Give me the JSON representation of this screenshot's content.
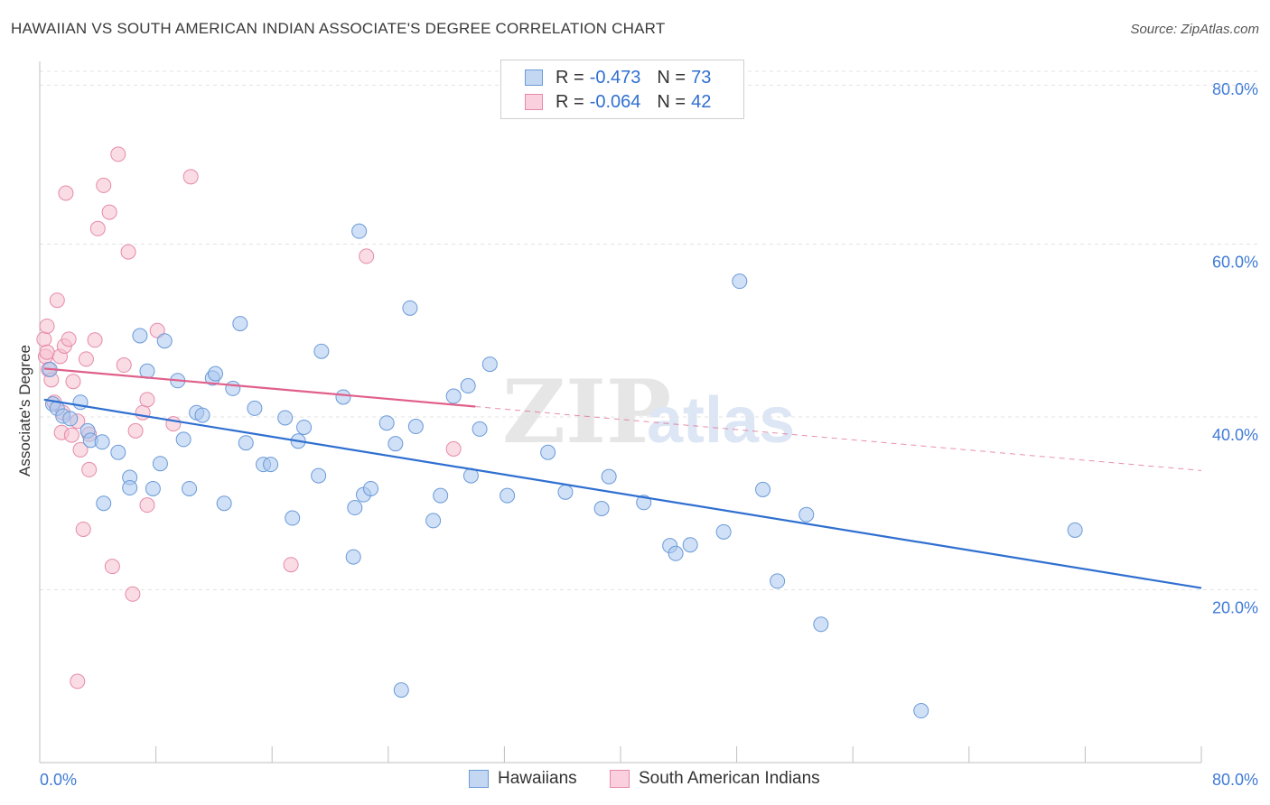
{
  "title": "HAWAIIAN VS SOUTH AMERICAN INDIAN ASSOCIATE'S DEGREE CORRELATION CHART",
  "source": "Source: ZipAtlas.com",
  "legend": {
    "series1": {
      "r_label": "R =",
      "r_value": "-0.473",
      "n_label": "N =",
      "n_value": "73"
    },
    "series2": {
      "r_label": "R =",
      "r_value": "-0.064",
      "n_label": "N =",
      "n_value": "42"
    }
  },
  "bottom_legend": {
    "series1": "Hawaiians",
    "series2": "South American Indians"
  },
  "watermark": {
    "zip": "ZIP",
    "atlas": "atlas"
  },
  "colors": {
    "blue_fill": "#a9c6ee",
    "blue_stroke": "#6a9ad8",
    "blue_line": "#2f6fd0",
    "pink_fill": "#f6bfd0",
    "pink_stroke": "#e68aa8",
    "pink_line": "#e0608a",
    "grid": "#e3e3e3",
    "tick_label": "#3f7bd6"
  },
  "chart_data": {
    "type": "scatter",
    "title": "HAWAIIAN VS SOUTH AMERICAN INDIAN ASSOCIATE'S DEGREE CORRELATION CHART",
    "xlabel": "",
    "ylabel": "Associate's Degree",
    "xlim": [
      0,
      80
    ],
    "ylim": [
      0,
      80
    ],
    "x_tick_labels": [
      "0.0%",
      "80.0%"
    ],
    "y_ticks": [
      20,
      40,
      60,
      80
    ],
    "y_tick_labels": [
      "20.0%",
      "40.0%",
      "60.0%",
      "80.0%"
    ],
    "grid": true,
    "legend_position": "top-center",
    "series": [
      {
        "name": "Hawaiians",
        "points": [
          [
            0.7,
            45.5
          ],
          [
            0.9,
            41.5
          ],
          [
            1.2,
            41.0
          ],
          [
            1.6,
            40.1
          ],
          [
            2.1,
            39.8
          ],
          [
            2.8,
            41.7
          ],
          [
            3.3,
            38.4
          ],
          [
            3.5,
            37.3
          ],
          [
            4.3,
            37.1
          ],
          [
            4.4,
            30.0
          ],
          [
            5.4,
            35.9
          ],
          [
            6.2,
            33.0
          ],
          [
            6.2,
            31.8
          ],
          [
            6.9,
            49.4
          ],
          [
            7.4,
            45.3
          ],
          [
            7.8,
            31.7
          ],
          [
            8.3,
            34.6
          ],
          [
            8.6,
            48.8
          ],
          [
            9.5,
            44.2
          ],
          [
            9.9,
            37.4
          ],
          [
            10.3,
            31.7
          ],
          [
            10.8,
            40.5
          ],
          [
            11.2,
            40.2
          ],
          [
            11.9,
            44.5
          ],
          [
            12.1,
            45.0
          ],
          [
            12.7,
            30.0
          ],
          [
            13.3,
            43.3
          ],
          [
            13.8,
            50.8
          ],
          [
            14.2,
            37.0
          ],
          [
            14.8,
            41.0
          ],
          [
            15.4,
            34.5
          ],
          [
            15.9,
            34.5
          ],
          [
            16.9,
            39.9
          ],
          [
            17.4,
            28.3
          ],
          [
            17.8,
            37.2
          ],
          [
            18.2,
            38.8
          ],
          [
            19.2,
            33.2
          ],
          [
            19.4,
            47.6
          ],
          [
            20.9,
            42.3
          ],
          [
            21.6,
            23.8
          ],
          [
            22.0,
            61.5
          ],
          [
            21.7,
            29.5
          ],
          [
            22.3,
            31.0
          ],
          [
            22.8,
            31.7
          ],
          [
            23.9,
            39.3
          ],
          [
            24.5,
            36.9
          ],
          [
            24.9,
            8.4
          ],
          [
            25.5,
            52.6
          ],
          [
            25.9,
            38.9
          ],
          [
            27.1,
            28.0
          ],
          [
            27.6,
            30.9
          ],
          [
            28.5,
            42.4
          ],
          [
            29.5,
            43.6
          ],
          [
            29.7,
            33.2
          ],
          [
            30.3,
            38.6
          ],
          [
            31.0,
            46.1
          ],
          [
            32.2,
            30.9
          ],
          [
            35.0,
            35.9
          ],
          [
            36.2,
            31.3
          ],
          [
            38.7,
            29.4
          ],
          [
            39.2,
            33.1
          ],
          [
            41.6,
            30.1
          ],
          [
            43.4,
            25.1
          ],
          [
            43.8,
            24.2
          ],
          [
            44.8,
            25.2
          ],
          [
            47.1,
            26.7
          ],
          [
            48.2,
            55.7
          ],
          [
            49.8,
            31.6
          ],
          [
            50.8,
            21.0
          ],
          [
            52.8,
            28.7
          ],
          [
            53.8,
            16.0
          ],
          [
            60.7,
            6.0
          ],
          [
            71.3,
            26.9
          ]
        ],
        "trend": {
          "x": [
            0.3,
            80.0
          ],
          "y": [
            42.0,
            20.2
          ]
        }
      },
      {
        "name": "South American Indians",
        "points": [
          [
            0.3,
            49.0
          ],
          [
            0.4,
            47.0
          ],
          [
            0.5,
            50.5
          ],
          [
            0.6,
            45.5
          ],
          [
            0.8,
            44.3
          ],
          [
            1.0,
            41.7
          ],
          [
            1.2,
            53.5
          ],
          [
            1.4,
            47.0
          ],
          [
            1.5,
            38.2
          ],
          [
            1.7,
            48.2
          ],
          [
            1.8,
            65.9
          ],
          [
            2.0,
            49.0
          ],
          [
            2.2,
            37.9
          ],
          [
            2.3,
            44.1
          ],
          [
            2.6,
            39.5
          ],
          [
            2.8,
            36.2
          ],
          [
            3.0,
            27.0
          ],
          [
            3.2,
            46.7
          ],
          [
            3.4,
            33.9
          ],
          [
            3.8,
            48.9
          ],
          [
            4.0,
            61.8
          ],
          [
            4.4,
            66.8
          ],
          [
            4.8,
            63.7
          ],
          [
            5.0,
            22.7
          ],
          [
            5.4,
            70.4
          ],
          [
            5.8,
            46.0
          ],
          [
            6.1,
            59.1
          ],
          [
            6.4,
            19.5
          ],
          [
            6.6,
            38.4
          ],
          [
            7.1,
            40.5
          ],
          [
            7.4,
            29.8
          ],
          [
            7.4,
            42.0
          ],
          [
            8.1,
            50.0
          ],
          [
            9.2,
            39.2
          ],
          [
            10.4,
            67.8
          ],
          [
            17.3,
            22.9
          ],
          [
            22.5,
            58.6
          ],
          [
            28.5,
            36.3
          ],
          [
            2.6,
            9.4
          ],
          [
            1.6,
            40.5
          ],
          [
            0.5,
            47.5
          ],
          [
            3.4,
            38.0
          ]
        ],
        "trend": {
          "x": [
            0.3,
            30.0
          ],
          "y": [
            45.6,
            41.2
          ]
        },
        "trend_extension": {
          "x": [
            30.0,
            80.0
          ],
          "y": [
            41.2,
            33.8
          ]
        }
      }
    ]
  }
}
